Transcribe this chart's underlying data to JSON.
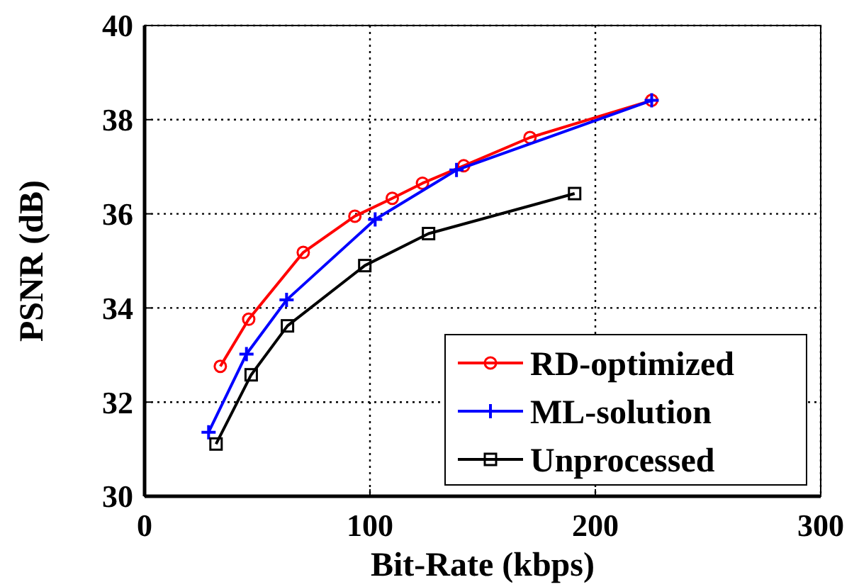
{
  "chart_data": {
    "type": "line",
    "xlabel": "Bit-Rate (kbps)",
    "ylabel": "PSNR (dB)",
    "xlim": [
      0,
      300
    ],
    "xticks": [
      0,
      100,
      200,
      300
    ],
    "ylim": [
      30,
      40
    ],
    "yticks": [
      30,
      32,
      34,
      36,
      38,
      40
    ],
    "grid": true,
    "legend": "bottom right",
    "line_style": "solid",
    "series": [
      {
        "name": "RD-optimized",
        "color": "#ff0000",
        "marker": "circle",
        "x": [
          33.6,
          46.2,
          70.4,
          93.3,
          109.9,
          123.3,
          141.6,
          171,
          225
        ],
        "values": [
          32.76,
          33.76,
          35.18,
          35.95,
          36.33,
          36.65,
          37.02,
          37.62,
          38.41
        ]
      },
      {
        "name": "ML-solution",
        "color": "#0000ff",
        "marker": "cross",
        "x": [
          28.4,
          45.2,
          63,
          102.3,
          138.4,
          225
        ],
        "values": [
          31.36,
          33.02,
          34.17,
          35.88,
          36.93,
          38.41
        ]
      },
      {
        "name": "Unprocessed",
        "color": "#000000",
        "marker": "square",
        "x": [
          31.7,
          47.3,
          63.4,
          97.7,
          126,
          190.8
        ],
        "values": [
          31.11,
          32.58,
          33.62,
          34.9,
          35.58,
          36.43
        ]
      }
    ]
  }
}
